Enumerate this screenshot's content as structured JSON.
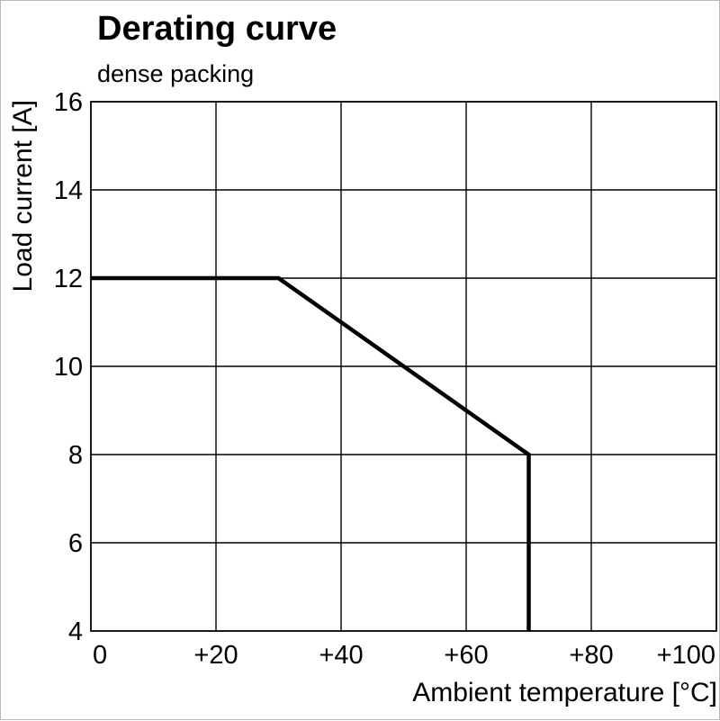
{
  "title": "Derating curve",
  "subtitle": "dense packing",
  "colors": {
    "line": "#000000",
    "grid": "#000000",
    "axis": "#000000",
    "background": "#ffffff"
  },
  "chart_data": {
    "type": "line",
    "title": "Derating curve",
    "subtitle": "dense packing",
    "xlabel": "Ambient temperature [°C]",
    "ylabel": "Load current [A]",
    "xlim": [
      0,
      100
    ],
    "ylim": [
      4,
      16
    ],
    "grid": true,
    "x_ticks": [
      {
        "value": 0,
        "label": "0"
      },
      {
        "value": 20,
        "label": "+20"
      },
      {
        "value": 40,
        "label": "+40"
      },
      {
        "value": 60,
        "label": "+60"
      },
      {
        "value": 80,
        "label": "+80"
      },
      {
        "value": 100,
        "label": "+100"
      }
    ],
    "y_ticks": [
      {
        "value": 4,
        "label": "4"
      },
      {
        "value": 6,
        "label": "6"
      },
      {
        "value": 8,
        "label": "8"
      },
      {
        "value": 10,
        "label": "10"
      },
      {
        "value": 12,
        "label": "12"
      },
      {
        "value": 14,
        "label": "14"
      },
      {
        "value": 16,
        "label": "16"
      }
    ],
    "series": [
      {
        "name": "derating-dense-packing",
        "points": [
          [
            0,
            12
          ],
          [
            30,
            12
          ],
          [
            70,
            8
          ],
          [
            70,
            4
          ]
        ]
      }
    ],
    "line_color": "#000000",
    "line_width": 4.5
  }
}
